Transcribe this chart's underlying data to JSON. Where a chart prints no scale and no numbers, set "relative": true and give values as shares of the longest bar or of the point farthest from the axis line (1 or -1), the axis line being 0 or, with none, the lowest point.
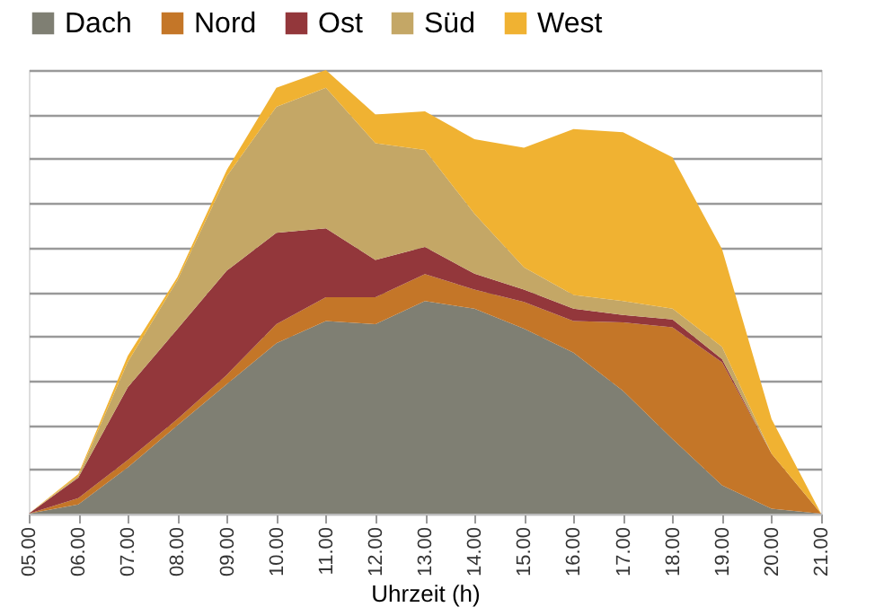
{
  "chart_data": {
    "type": "area",
    "stacked": true,
    "relative": true,
    "xlabel": "Uhrzeit (h)",
    "legend": "top",
    "grid": "y",
    "x": [
      5,
      6,
      7,
      8,
      9,
      10,
      11,
      12,
      13,
      14,
      15,
      16,
      17,
      18,
      19,
      20,
      21
    ],
    "xlim": [
      5,
      21
    ],
    "xticks": [
      {
        "value": 5,
        "label": "05.00"
      },
      {
        "value": 6,
        "label": "06.00"
      },
      {
        "value": 7,
        "label": "07.00"
      },
      {
        "value": 8,
        "label": "08.00"
      },
      {
        "value": 9,
        "label": "09.00"
      },
      {
        "value": 10,
        "label": "10.00"
      },
      {
        "value": 11,
        "label": "11.00"
      },
      {
        "value": 12,
        "label": "12.00"
      },
      {
        "value": 13,
        "label": "13.00"
      },
      {
        "value": 14,
        "label": "14.00"
      },
      {
        "value": 15,
        "label": "15.00"
      },
      {
        "value": 16,
        "label": "16.00"
      },
      {
        "value": 17,
        "label": "17.00"
      },
      {
        "value": 18,
        "label": "18.00"
      },
      {
        "value": 19,
        "label": "19.00"
      },
      {
        "value": 20,
        "label": "20.00"
      },
      {
        "value": 21,
        "label": "21.00"
      }
    ],
    "series": [
      {
        "name": "Dach",
        "color": "#7f7f73",
        "values": [
          0,
          0.021,
          0.104,
          0.199,
          0.292,
          0.384,
          0.434,
          0.427,
          0.479,
          0.462,
          0.417,
          0.363,
          0.277,
          0.168,
          0.064,
          0.011,
          0
        ]
      },
      {
        "name": "Nord",
        "color": "#c47628",
        "values": [
          0,
          0.014,
          0.017,
          0.014,
          0.021,
          0.043,
          0.054,
          0.061,
          0.061,
          0.043,
          0.06,
          0.071,
          0.154,
          0.252,
          0.277,
          0.124,
          0
        ]
      },
      {
        "name": "Ost",
        "color": "#93373b",
        "values": [
          0,
          0.046,
          0.164,
          0.203,
          0.235,
          0.206,
          0.155,
          0.084,
          0.061,
          0.036,
          0.028,
          0.028,
          0.017,
          0.018,
          0.007,
          0,
          0
        ]
      },
      {
        "name": "Süd",
        "color": "#c4a766",
        "values": [
          0,
          0.004,
          0.057,
          0.11,
          0.213,
          0.284,
          0.317,
          0.263,
          0.219,
          0.135,
          0.05,
          0.031,
          0.031,
          0.024,
          0.028,
          0,
          0
        ]
      },
      {
        "name": "West",
        "color": "#f0b232",
        "values": [
          0,
          0.004,
          0.014,
          0.007,
          0.014,
          0.043,
          0.04,
          0.065,
          0.087,
          0.168,
          0.27,
          0.374,
          0.381,
          0.341,
          0.22,
          0.078,
          0
        ]
      }
    ]
  }
}
